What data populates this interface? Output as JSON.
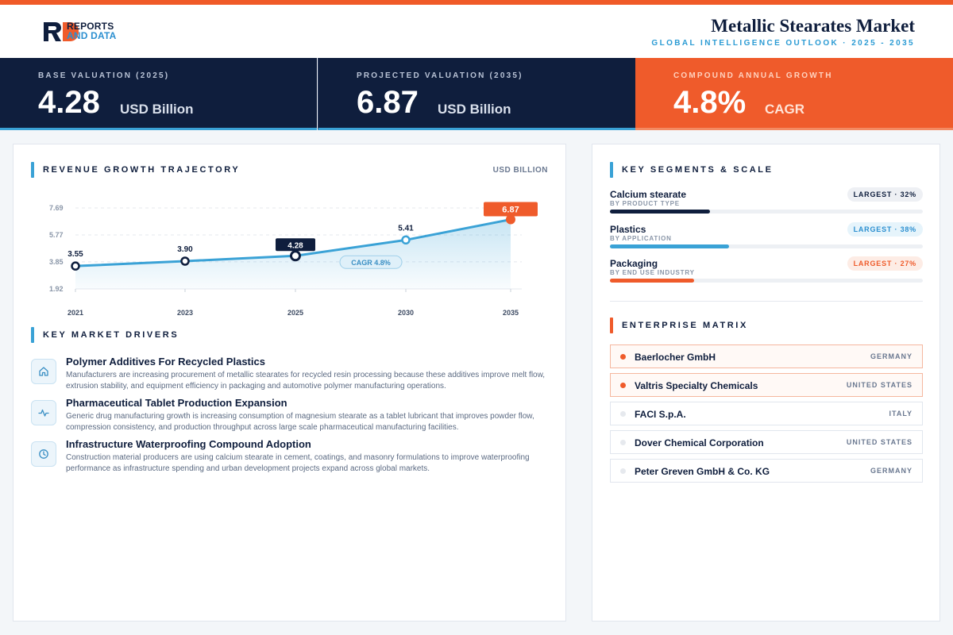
{
  "header": {
    "logo_line1": "REPORTS",
    "logo_line2": "AND DATA",
    "title": "Metallic Stearates Market",
    "subtitle": "GLOBAL INTELLIGENCE OUTLOOK  ·  2025 - 2035"
  },
  "kpis": [
    {
      "label": "BASE VALUATION (2025)",
      "value": "4.28",
      "unit": "USD Billion"
    },
    {
      "label": "PROJECTED VALUATION (2035)",
      "value": "6.87",
      "unit": "USD Billion"
    },
    {
      "label": "COMPOUND ANNUAL GROWTH",
      "value": "4.8%",
      "unit": "CAGR"
    }
  ],
  "chart_section": {
    "title": "REVENUE GROWTH TRAJECTORY",
    "unit": "USD BILLION"
  },
  "chart_data": {
    "type": "area",
    "categories": [
      "2021",
      "2023",
      "2025",
      "2030",
      "2035"
    ],
    "values": [
      3.55,
      3.9,
      4.28,
      5.41,
      6.87
    ],
    "data_labels": [
      "3.55",
      "3.90",
      "4.28",
      "5.41",
      "6.87"
    ],
    "y_ticks": [
      "7.69",
      "5.77",
      "3.85",
      "1.92"
    ],
    "y_tick_values": [
      7.69,
      5.77,
      3.85,
      1.92
    ],
    "ylim": [
      1.92,
      7.69
    ],
    "annotation": "CAGR 4.8%",
    "grid": true,
    "colors": {
      "line": "#3aa2d6",
      "highlight": "#0f1e3d",
      "final": "#ef5b2b"
    }
  },
  "drivers_section": {
    "title": "KEY MARKET DRIVERS"
  },
  "drivers": [
    {
      "icon": "home-icon",
      "title": "Polymer Additives For Recycled Plastics",
      "desc": "Manufacturers are increasing procurement of metallic stearates for recycled resin processing because these additives improve melt flow, extrusion stability, and equipment efficiency in packaging and automotive polymer manufacturing operations."
    },
    {
      "icon": "pulse-icon",
      "title": "Pharmaceutical Tablet Production Expansion",
      "desc": "Generic drug manufacturing growth is increasing consumption of magnesium stearate as a tablet lubricant that improves powder flow, compression consistency, and production throughput across large scale pharmaceutical manufacturing facilities."
    },
    {
      "icon": "clock-icon",
      "title": "Infrastructure Waterproofing Compound Adoption",
      "desc": "Construction material producers are using calcium stearate in cement, coatings, and masonry formulations to improve waterproofing performance as infrastructure spending and urban development projects expand across global markets."
    }
  ],
  "segments_section": {
    "title": "KEY SEGMENTS & SCALE"
  },
  "segments": [
    {
      "name": "Calcium stearate",
      "category": "BY PRODUCT TYPE",
      "badge": "LARGEST · 32%",
      "share": 0.32,
      "color": "#0f1e3d",
      "badge_bg": "#eef0f4",
      "badge_fg": "#0f1e3d"
    },
    {
      "name": "Plastics",
      "category": "BY APPLICATION",
      "badge": "LARGEST · 38%",
      "share": 0.38,
      "color": "#3aa2d6",
      "badge_bg": "#e6f4fb",
      "badge_fg": "#2b8fd0"
    },
    {
      "name": "Packaging",
      "category": "BY END USE INDUSTRY",
      "badge": "LARGEST · 27%",
      "share": 0.27,
      "color": "#ef5b2b",
      "badge_bg": "#fdece5",
      "badge_fg": "#ef5b2b"
    }
  ],
  "enterprise_section": {
    "title": "ENTERPRISE MATRIX"
  },
  "enterprises": [
    {
      "name": "Baerlocher GmbH",
      "country": "GERMANY",
      "highlight": true
    },
    {
      "name": "Valtris Specialty Chemicals",
      "country": "UNITED STATES",
      "highlight": true
    },
    {
      "name": "FACI S.p.A.",
      "country": "ITALY",
      "highlight": false
    },
    {
      "name": "Dover Chemical Corporation",
      "country": "UNITED STATES",
      "highlight": false
    },
    {
      "name": "Peter Greven GmbH & Co. KG",
      "country": "GERMANY",
      "highlight": false
    }
  ]
}
